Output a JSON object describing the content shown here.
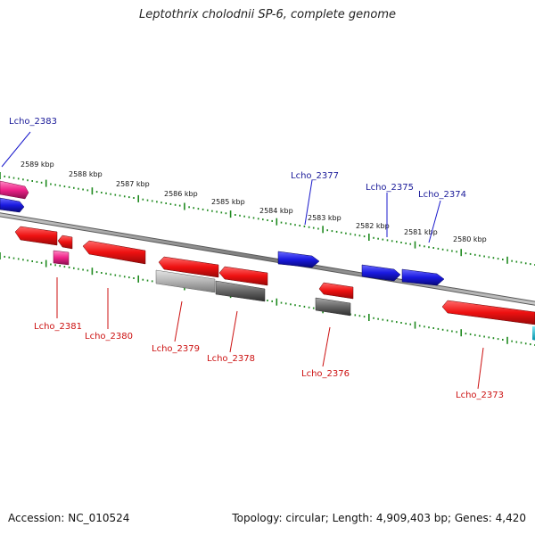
{
  "header": {
    "title": "Leptothrix cholodnii SP-6, complete genome"
  },
  "footer": {
    "accession": "Accession: NC_010524",
    "summary": "Topology: circular; Length: 4,909,403 bp; Genes: 4,420"
  },
  "scale_ticks": [
    "2589 kbp",
    "2588 kbp",
    "2587 kbp",
    "2586 kbp",
    "2585 kbp",
    "2584 kbp",
    "2583 kbp",
    "2582 kbp",
    "2581 kbp",
    "2580 kbp"
  ],
  "gene_labels": {
    "top": [
      "Lcho_2383",
      "Lcho_2377",
      "Lcho_2375",
      "Lcho_2374"
    ],
    "bottom": [
      "Lcho_2381",
      "Lcho_2380",
      "Lcho_2379",
      "Lcho_2378",
      "Lcho_2376",
      "Lcho_2373"
    ]
  },
  "colors": {
    "forward_cds": "#1a1ae0",
    "reverse_cds": "#ee1111",
    "rna": "#ee2288",
    "other": "#666666",
    "pseudo": "#aaaaaa",
    "misc": "#00bcd4",
    "top_label": "#1a1a99",
    "bottom_label": "#cc1111",
    "tick": "#1f8a1f",
    "backbone": "#777777"
  }
}
